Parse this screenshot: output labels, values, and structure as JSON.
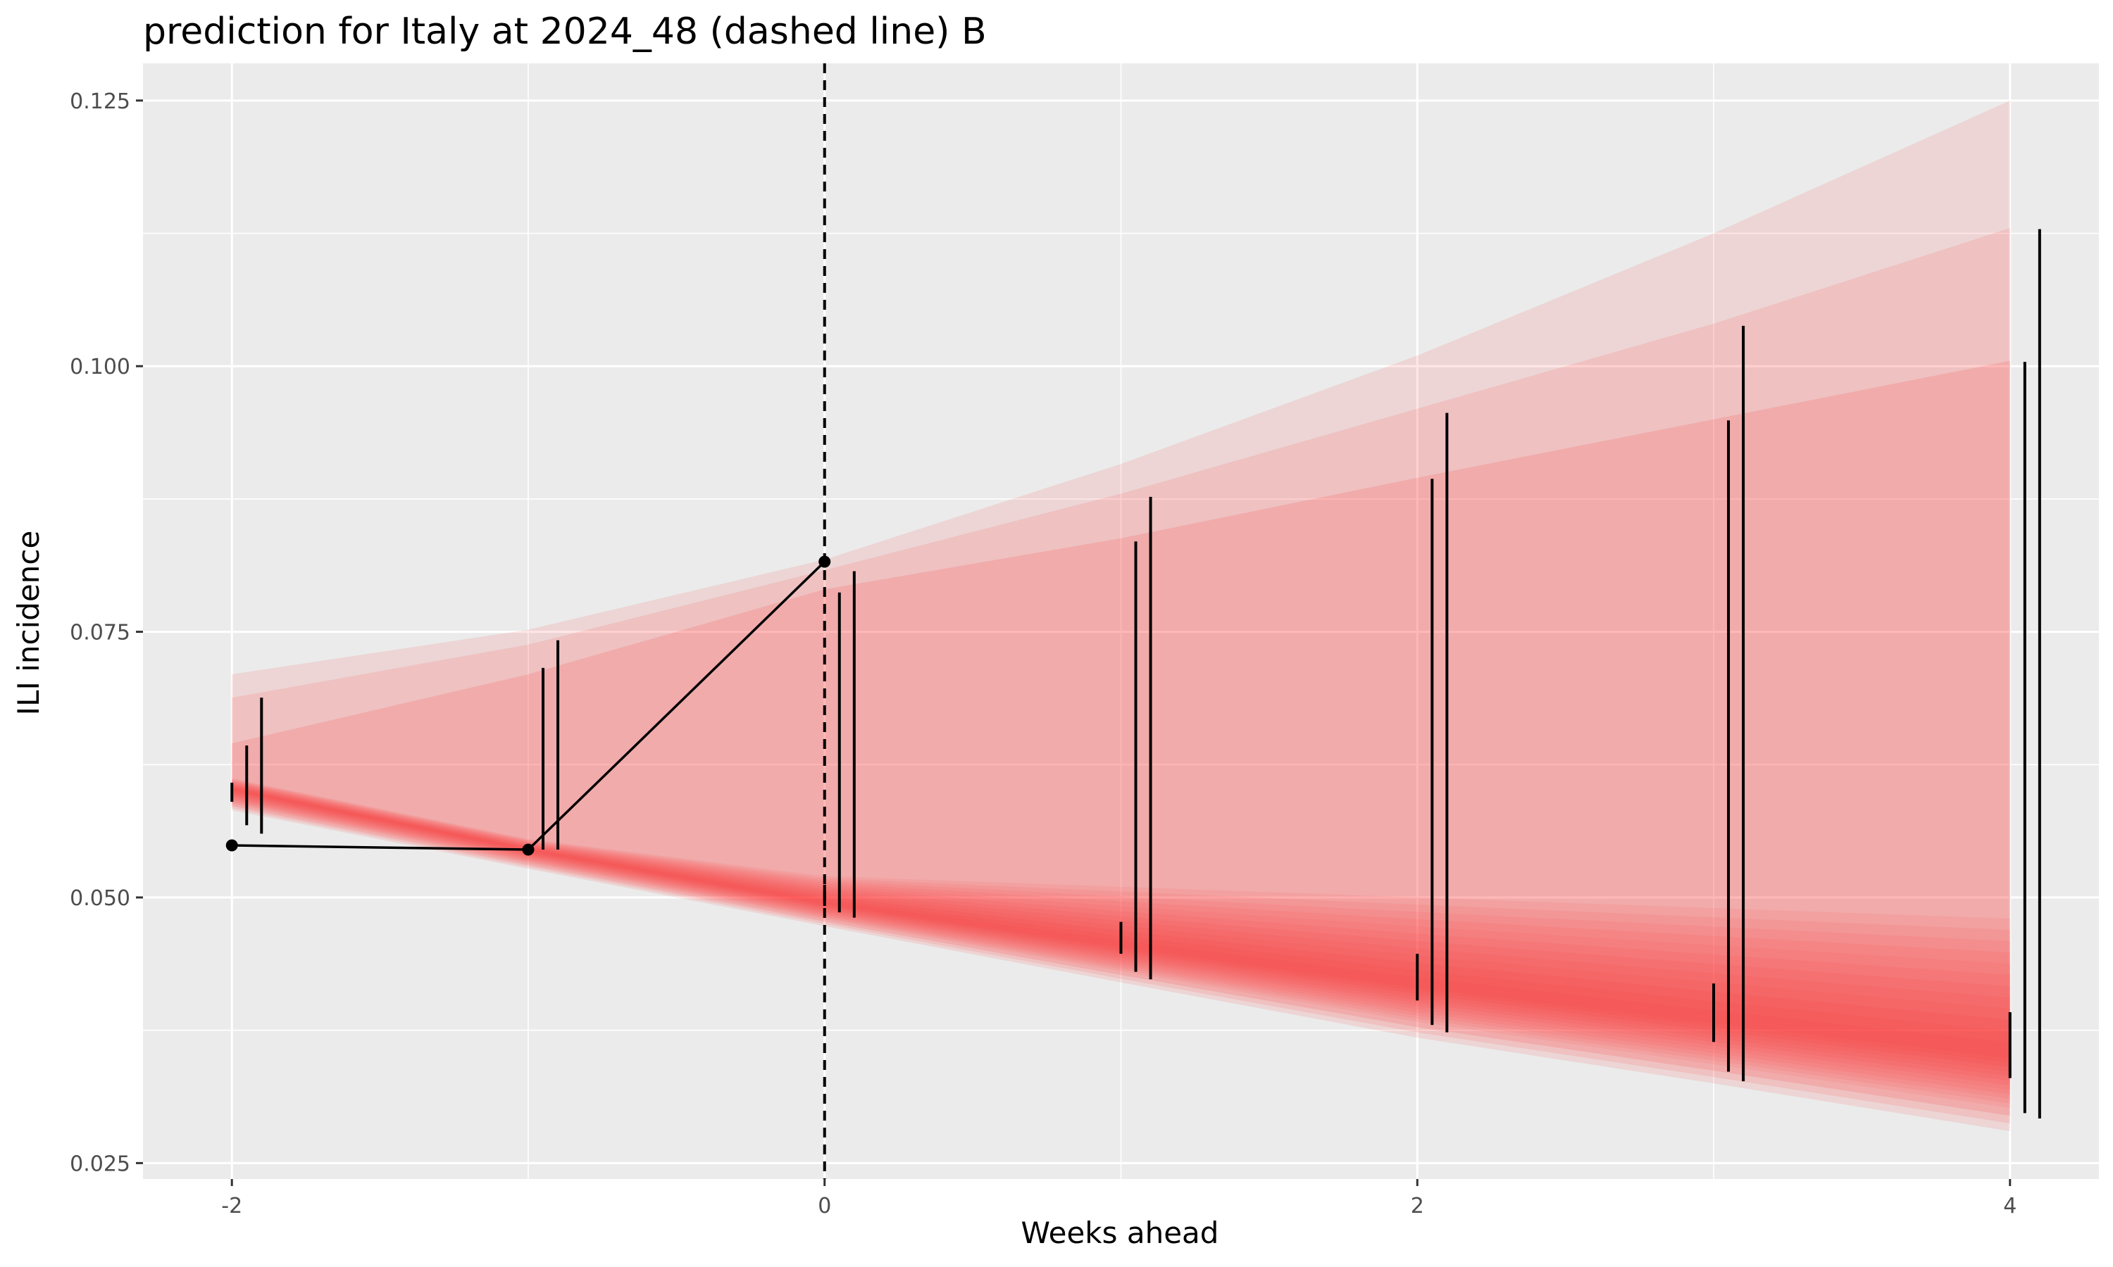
{
  "chart_data": {
    "type": "line",
    "title": "prediction for Italy at 2024_48 (dashed line) B",
    "xlabel": "Weeks ahead",
    "ylabel": "ILI incidence",
    "xlim": [
      -2.3,
      4.3
    ],
    "ylim": [
      0.0235,
      0.1285
    ],
    "x_ticks": [
      -2,
      0,
      2,
      4
    ],
    "x_tick_labels": [
      "-2",
      "0",
      "2",
      "4"
    ],
    "y_ticks": [
      0.025,
      0.05,
      0.075,
      0.1,
      0.125
    ],
    "y_tick_labels": [
      "0.025",
      "0.050",
      "0.075",
      "0.100",
      "0.125"
    ],
    "grid": true,
    "vline_x": 0,
    "observed": {
      "x": [
        -2,
        -1,
        0
      ],
      "y": [
        0.0549,
        0.0545,
        0.0816
      ]
    },
    "fan": {
      "x": [
        -2,
        -1,
        0,
        1,
        2,
        3,
        4
      ],
      "median": [
        0.0602,
        0.0545,
        0.0495,
        0.0455,
        0.0418,
        0.0385,
        0.0353
      ],
      "outer_upper": [
        0.071,
        0.0752,
        0.0818,
        0.0908,
        0.101,
        0.1125,
        0.125
      ],
      "mid_upper": [
        0.0688,
        0.0738,
        0.0808,
        0.088,
        0.096,
        0.104,
        0.113
      ],
      "inner_upper": [
        0.0645,
        0.071,
        0.079,
        0.0838,
        0.0895,
        0.095,
        0.1005
      ],
      "core_upper": [
        0.0612,
        0.0555,
        0.052,
        0.051,
        0.05,
        0.049,
        0.048
      ],
      "lower_band_spread": [
        0.002,
        0.0018,
        0.0022,
        0.0035,
        0.005,
        0.006,
        0.0073
      ]
    },
    "intervals": [
      {
        "x": -2.0,
        "lo": 0.059,
        "hi": 0.0608
      },
      {
        "x": -1.95,
        "lo": 0.0568,
        "hi": 0.0643
      },
      {
        "x": -1.9,
        "lo": 0.056,
        "hi": 0.0688
      },
      {
        "x": -1.05,
        "lo": 0.0545,
        "hi": 0.0545
      },
      {
        "x": -0.95,
        "lo": 0.0545,
        "hi": 0.0716
      },
      {
        "x": -0.9,
        "lo": 0.0545,
        "hi": 0.0742
      },
      {
        "x": 0.0,
        "lo": 0.0492,
        "hi": 0.0512
      },
      {
        "x": 0.05,
        "lo": 0.0486,
        "hi": 0.0787
      },
      {
        "x": 0.1,
        "lo": 0.0481,
        "hi": 0.0807
      },
      {
        "x": 1.0,
        "lo": 0.0447,
        "hi": 0.0477
      },
      {
        "x": 1.05,
        "lo": 0.043,
        "hi": 0.0835
      },
      {
        "x": 1.1,
        "lo": 0.0423,
        "hi": 0.0877
      },
      {
        "x": 2.0,
        "lo": 0.0403,
        "hi": 0.0447
      },
      {
        "x": 2.05,
        "lo": 0.038,
        "hi": 0.0894
      },
      {
        "x": 2.1,
        "lo": 0.0373,
        "hi": 0.0956
      },
      {
        "x": 3.0,
        "lo": 0.0364,
        "hi": 0.0419
      },
      {
        "x": 3.05,
        "lo": 0.0336,
        "hi": 0.0949
      },
      {
        "x": 3.1,
        "lo": 0.0327,
        "hi": 0.1038
      },
      {
        "x": 4.0,
        "lo": 0.033,
        "hi": 0.0392
      },
      {
        "x": 4.05,
        "lo": 0.0297,
        "hi": 0.1004
      },
      {
        "x": 4.1,
        "lo": 0.0292,
        "hi": 0.1129
      }
    ],
    "colors": {
      "panel": "#ebebeb",
      "grid": "#ffffff",
      "fan": "#ff3b3b",
      "line": "#000000"
    }
  }
}
